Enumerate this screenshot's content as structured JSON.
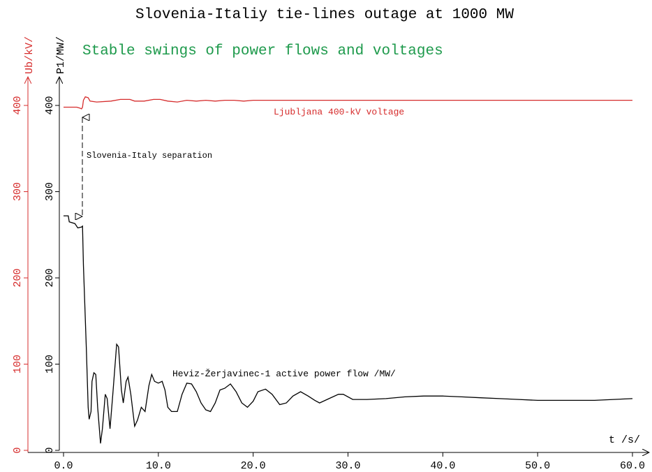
{
  "chart_data": {
    "type": "line",
    "title": "Slovenia-Italiy tie-lines outage at 1000 MW",
    "subtitle": "Stable swings of power flows and voltages",
    "xlabel": "t /s/",
    "ylabel": "P1/MW/",
    "y2label": "Ub/kV/",
    "annotations": [
      "Ljubljana 400-kV voltage",
      "Slovenia-Italy separation",
      "Heviz-Žerjavinec-1 active power flow /MW/"
    ],
    "xlim": [
      0,
      60
    ],
    "xticks": [
      {
        "value": 0,
        "label": "0.0"
      },
      {
        "value": 10,
        "label": "10.0"
      },
      {
        "value": 20,
        "label": "20.0"
      },
      {
        "value": 30,
        "label": "30.0"
      },
      {
        "value": 40,
        "label": "40.0"
      },
      {
        "value": 50,
        "label": "50.0"
      },
      {
        "value": 60,
        "label": "60.0"
      }
    ],
    "ylim": [
      0,
      400
    ],
    "yticks": [
      0,
      100,
      200,
      300,
      400
    ],
    "y2lim": [
      0,
      400
    ],
    "y2ticks": [
      0,
      100,
      200,
      300,
      400
    ],
    "series": [
      {
        "name": "Ljubljana 400-kV voltage",
        "color": "#d62c2c",
        "axis": "y2",
        "x": [
          0,
          1.4,
          1.7,
          1.9,
          2.0,
          2.1,
          2.3,
          2.6,
          2.8,
          3.5,
          5,
          6,
          7,
          7.5,
          8.5,
          9.5,
          10.2,
          11,
          12,
          13,
          14,
          15,
          16,
          17,
          18,
          19,
          20,
          25,
          30,
          40,
          50,
          60
        ],
        "values": [
          398,
          398,
          397,
          396,
          398,
          406,
          410,
          409,
          405,
          404,
          405,
          407,
          407,
          405,
          405,
          407,
          407,
          405,
          404,
          406,
          405,
          406,
          405,
          406,
          406,
          405,
          406,
          406,
          406,
          406,
          406,
          406
        ]
      },
      {
        "name": "Heviz-Žerjavinec-1 active power flow /MW/",
        "color": "#000000",
        "x": [
          0,
          0.5,
          0.6,
          1.2,
          1.5,
          1.9,
          2.0,
          2.1,
          2.4,
          2.6,
          2.7,
          2.9,
          3.0,
          3.2,
          3.4,
          3.6,
          3.9,
          4.1,
          4.4,
          4.6,
          4.9,
          5.2,
          5.6,
          5.8,
          6.1,
          6.3,
          6.6,
          6.8,
          7.1,
          7.5,
          7.8,
          8.2,
          8.6,
          9.0,
          9.3,
          9.6,
          10.0,
          10.4,
          10.7,
          11.0,
          11.4,
          12.0,
          12.5,
          13.0,
          13.5,
          14.0,
          14.5,
          15.0,
          15.5,
          16.0,
          16.5,
          17.0,
          17.6,
          18.2,
          18.8,
          19.4,
          20.0,
          20.5,
          21.3,
          22.0,
          22.8,
          23.5,
          24.2,
          25.0,
          25.8,
          26.5,
          27.0,
          28.0,
          29.0,
          29.5,
          30.5,
          32,
          34,
          36,
          38,
          40,
          42,
          44,
          46,
          48,
          50,
          52,
          56,
          58,
          60
        ],
        "values": [
          272,
          272,
          265,
          263,
          258,
          259,
          260,
          215,
          120,
          50,
          36,
          45,
          80,
          90,
          88,
          50,
          8,
          25,
          65,
          60,
          25,
          65,
          123,
          120,
          70,
          55,
          80,
          85,
          65,
          28,
          35,
          50,
          45,
          75,
          88,
          80,
          78,
          80,
          70,
          50,
          45,
          45,
          65,
          78,
          77,
          68,
          55,
          47,
          45,
          55,
          70,
          72,
          77,
          68,
          55,
          50,
          57,
          68,
          71,
          65,
          53,
          55,
          63,
          68,
          63,
          58,
          55,
          60,
          65,
          65,
          59,
          59,
          60,
          62,
          63,
          63,
          62,
          61,
          60,
          59,
          58,
          58,
          58,
          59,
          60
        ]
      }
    ]
  }
}
